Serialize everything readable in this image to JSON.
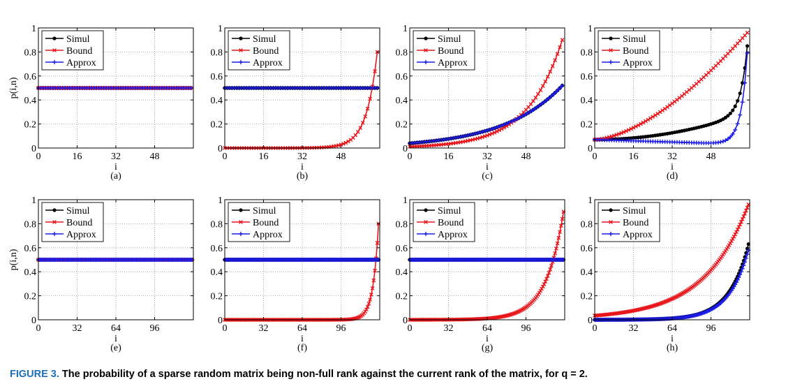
{
  "caption": {
    "label": "FIGURE 3.",
    "text": "The probability of a sparse random matrix being non-full rank against the current rank of the matrix, for q = 2."
  },
  "legend": [
    "Simul",
    "Bound",
    "Approx"
  ],
  "colors": {
    "Simul": "#000000",
    "Bound": "#e8161b",
    "Approx": "#1b1be8"
  },
  "chart_data": [
    {
      "panel": "(a)",
      "type": "line",
      "xlabel": "i",
      "ylabel": "p(i,n)",
      "xlim": [
        0,
        64
      ],
      "ylim": [
        0,
        1
      ],
      "xticks": [
        0,
        16,
        32,
        48
      ],
      "yticks": [
        0,
        0.2,
        0.4,
        0.6,
        0.8,
        1
      ],
      "yticklabels": [
        "0",
        "0.2",
        "0.4",
        "0.6",
        "0.8",
        "1"
      ],
      "grid": true,
      "legend": "top-left",
      "series": [
        {
          "name": "Simul",
          "model": "pow",
          "points": 64,
          "xmax": 63,
          "start": 0.0,
          "end": 0.5,
          "d": 1.0,
          "p": 1
        },
        {
          "name": "Bound",
          "model": "pow",
          "points": 64,
          "xmax": 63,
          "start": 0.0,
          "end": 0.5,
          "d": 1.0,
          "p": 1
        },
        {
          "name": "Approx",
          "model": "pow",
          "points": 64,
          "xmax": 63,
          "start": 0.0,
          "end": 0.5,
          "d": 1.0,
          "p": 1
        }
      ]
    },
    {
      "panel": "(b)",
      "type": "line",
      "xlabel": "i",
      "ylabel": "",
      "xlim": [
        0,
        64
      ],
      "ylim": [
        0,
        1
      ],
      "xticks": [
        0,
        16,
        32,
        48
      ],
      "yticks": [
        0,
        0.2,
        0.4,
        0.6,
        0.8,
        1
      ],
      "yticklabels": [
        "0",
        "0.2",
        "0.4",
        "0.6",
        "0.8",
        "1"
      ],
      "grid": true,
      "legend": "top-left",
      "series": [
        {
          "name": "Simul",
          "model": "pow",
          "points": 64,
          "xmax": 63,
          "start": 0.0,
          "end": 0.5,
          "d": 1.0,
          "p": 1
        },
        {
          "name": "Bound",
          "model": "pow",
          "points": 64,
          "xmax": 63,
          "start": 0.0,
          "end": 0.8,
          "d": 0.8,
          "p": 1
        },
        {
          "name": "Approx",
          "model": "pow",
          "points": 64,
          "xmax": 63,
          "start": 0.0,
          "end": 0.5,
          "d": 1.0,
          "p": 1
        }
      ]
    },
    {
      "panel": "(c)",
      "type": "line",
      "xlabel": "i",
      "ylabel": "",
      "xlim": [
        0,
        64
      ],
      "ylim": [
        0,
        1
      ],
      "xticks": [
        0,
        16,
        32,
        48
      ],
      "yticks": [
        0,
        0.2,
        0.4,
        0.6,
        0.8,
        1
      ],
      "yticklabels": [
        "0",
        "0.2",
        "0.4",
        "0.6",
        "0.8",
        "1"
      ],
      "grid": true,
      "legend": "top-left",
      "series": [
        {
          "name": "Simul",
          "model": "pow",
          "points": 64,
          "xmax": 63,
          "start": 0.0,
          "end": 0.52,
          "d": 0.96,
          "p": 1
        },
        {
          "name": "Bound",
          "model": "pow",
          "points": 64,
          "xmax": 63,
          "start": 0.0,
          "end": 0.9,
          "d": 0.933,
          "p": 1
        },
        {
          "name": "Approx",
          "model": "pow",
          "points": 64,
          "xmax": 63,
          "start": 0.0,
          "end": 0.52,
          "d": 0.96,
          "p": 1
        }
      ]
    },
    {
      "panel": "(d)",
      "type": "line",
      "xlabel": "i",
      "ylabel": "",
      "xlim": [
        0,
        64
      ],
      "ylim": [
        0,
        1
      ],
      "xticks": [
        0,
        16,
        32,
        48
      ],
      "yticks": [
        0,
        0.2,
        0.4,
        0.6,
        0.8,
        1
      ],
      "yticklabels": [
        "0",
        "0.2",
        "0.4",
        "0.6",
        "0.8",
        "1"
      ],
      "grid": true,
      "legend": "top-left",
      "series": [
        {
          "name": "Simul",
          "model": "dpow",
          "points": 64,
          "xmax": 63,
          "start": 0.07,
          "end": 0.85,
          "a": 0.22,
          "p": 2,
          "b": 0.56,
          "r": 0.82
        },
        {
          "name": "Bound",
          "model": "dpow",
          "points": 64,
          "xmax": 63,
          "start": 0.07,
          "end": 0.96,
          "a": 0.89,
          "p": 1.6,
          "b": 0.0,
          "r": 0.5
        },
        {
          "name": "Approx",
          "model": "dpow",
          "points": 64,
          "xmax": 63,
          "start": 0.07,
          "end": 0.79,
          "a": -0.04,
          "p": 1,
          "b": 0.76,
          "r": 0.78
        }
      ]
    },
    {
      "panel": "(e)",
      "type": "line",
      "xlabel": "i",
      "ylabel": "p(i,n)",
      "xlim": [
        0,
        128
      ],
      "ylim": [
        0,
        1
      ],
      "xticks": [
        0,
        32,
        64,
        96
      ],
      "yticks": [
        0,
        0.2,
        0.4,
        0.6,
        0.8,
        1
      ],
      "yticklabels": [
        "0",
        "0.2",
        "0.4",
        "0.6",
        "0.8",
        "1"
      ],
      "grid": true,
      "legend": "top-left",
      "series": [
        {
          "name": "Simul",
          "model": "pow",
          "points": 128,
          "xmax": 127,
          "start": 0.0,
          "end": 0.5,
          "d": 1.0,
          "p": 1
        },
        {
          "name": "Bound",
          "model": "pow",
          "points": 128,
          "xmax": 127,
          "start": 0.0,
          "end": 0.5,
          "d": 1.0,
          "p": 1
        },
        {
          "name": "Approx",
          "model": "pow",
          "points": 128,
          "xmax": 127,
          "start": 0.0,
          "end": 0.5,
          "d": 1.0,
          "p": 1
        }
      ]
    },
    {
      "panel": "(f)",
      "type": "line",
      "xlabel": "i",
      "ylabel": "",
      "xlim": [
        0,
        128
      ],
      "ylim": [
        0,
        1
      ],
      "xticks": [
        0,
        32,
        64,
        96
      ],
      "yticks": [
        0,
        0.2,
        0.4,
        0.6,
        0.8,
        1
      ],
      "yticklabels": [
        "0",
        "0.2",
        "0.4",
        "0.6",
        "0.8",
        "1"
      ],
      "grid": true,
      "legend": "top-left",
      "series": [
        {
          "name": "Simul",
          "model": "pow",
          "points": 128,
          "xmax": 127,
          "start": 0.0,
          "end": 0.5,
          "d": 1.0,
          "p": 1
        },
        {
          "name": "Bound",
          "model": "pow",
          "points": 128,
          "xmax": 127,
          "start": 0.0,
          "end": 0.8,
          "d": 0.8,
          "p": 1
        },
        {
          "name": "Approx",
          "model": "pow",
          "points": 128,
          "xmax": 127,
          "start": 0.0,
          "end": 0.5,
          "d": 1.0,
          "p": 1
        }
      ]
    },
    {
      "panel": "(g)",
      "type": "line",
      "xlabel": "i",
      "ylabel": "",
      "xlim": [
        0,
        128
      ],
      "ylim": [
        0,
        1
      ],
      "xticks": [
        0,
        32,
        64,
        96
      ],
      "yticks": [
        0,
        0.2,
        0.4,
        0.6,
        0.8,
        1
      ],
      "yticklabels": [
        "0",
        "0.2",
        "0.4",
        "0.6",
        "0.8",
        "1"
      ],
      "grid": true,
      "legend": "top-left",
      "series": [
        {
          "name": "Simul",
          "model": "pow",
          "points": 128,
          "xmax": 127,
          "start": 0.0,
          "end": 0.5,
          "d": 1.0,
          "p": 1
        },
        {
          "name": "Bound",
          "model": "pow",
          "points": 128,
          "xmax": 127,
          "start": 0.0,
          "end": 0.9,
          "d": 0.933,
          "p": 1
        },
        {
          "name": "Approx",
          "model": "pow",
          "points": 128,
          "xmax": 127,
          "start": 0.0,
          "end": 0.5,
          "d": 1.0,
          "p": 1
        }
      ]
    },
    {
      "panel": "(h)",
      "type": "line",
      "xlabel": "i",
      "ylabel": "",
      "xlim": [
        0,
        128
      ],
      "ylim": [
        0,
        1
      ],
      "xticks": [
        0,
        32,
        64,
        96
      ],
      "yticks": [
        0,
        0.2,
        0.4,
        0.6,
        0.8,
        1
      ],
      "yticklabels": [
        "0",
        "0.2",
        "0.4",
        "0.6",
        "0.8",
        "1"
      ],
      "grid": true,
      "legend": "top-left",
      "series": [
        {
          "name": "Simul",
          "model": "pow",
          "points": 128,
          "xmax": 127,
          "start": 0.0,
          "end": 0.63,
          "d": 0.94,
          "p": 1
        },
        {
          "name": "Bound",
          "model": "pow",
          "points": 128,
          "xmax": 127,
          "start": 0.005,
          "end": 0.96,
          "d": 0.973,
          "p": 1
        },
        {
          "name": "Approx",
          "model": "pow",
          "points": 128,
          "xmax": 127,
          "start": 0.0,
          "end": 0.58,
          "d": 0.94,
          "p": 1
        }
      ]
    }
  ]
}
